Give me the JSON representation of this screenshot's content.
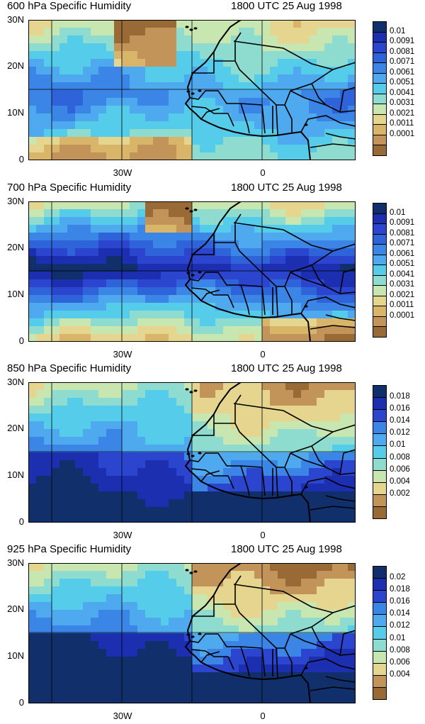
{
  "panels": [
    {
      "title_left": "600 hPa Specific Humidity",
      "title_right": "1800 UTC 25 Aug 1998",
      "y_ticks": [
        "30N",
        "20N",
        "10N",
        "0"
      ],
      "x_ticks": [
        "30W",
        "0"
      ],
      "colorbar_labels": [
        "0.01",
        "0.0091",
        "0.0081",
        "0.0071",
        "0.0061",
        "0.0051",
        "0.0041",
        "0.0031",
        "0.0021",
        "0.0011",
        "0.0001"
      ],
      "colors": [
        "#11306b",
        "#1b2fb0",
        "#2b45cf",
        "#2f63da",
        "#3a85e6",
        "#4ea9ee",
        "#54ccea",
        "#8edcd0",
        "#c7e6b0",
        "#e6d58e",
        "#d9b56a",
        "#c3945a",
        "#9a6a36"
      ],
      "ramp": "wet-mid"
    },
    {
      "title_left": "700 hPa Specific Humidity",
      "title_right": "1800 UTC 25 Aug 1998",
      "y_ticks": [
        "30N",
        "20N",
        "10N",
        "0"
      ],
      "x_ticks": [
        "30W",
        "0"
      ],
      "colorbar_labels": [
        "0.01",
        "0.0091",
        "0.0081",
        "0.0071",
        "0.0061",
        "0.0051",
        "0.0041",
        "0.0031",
        "0.0021",
        "0.0011",
        "0.0001"
      ],
      "colors": [
        "#11306b",
        "#1b2fb0",
        "#2b45cf",
        "#2f63da",
        "#3a85e6",
        "#4ea9ee",
        "#54ccea",
        "#8edcd0",
        "#c7e6b0",
        "#e6d58e",
        "#d9b56a",
        "#c3945a",
        "#9a6a36"
      ],
      "ramp": "wet-band"
    },
    {
      "title_left": "850 hPa Specific Humidity",
      "title_right": "1800 UTC 25 Aug 1998",
      "y_ticks": [
        "30N",
        "20N",
        "10N",
        "0"
      ],
      "x_ticks": [
        "30W",
        "0"
      ],
      "colorbar_labels": [
        "0.018",
        "0.016",
        "0.014",
        "0.012",
        "0.01",
        "0.008",
        "0.006",
        "0.004",
        "0.002"
      ],
      "colors": [
        "#11306b",
        "#1b2fb0",
        "#2b45cf",
        "#3a85e6",
        "#4ea9ee",
        "#54ccea",
        "#8edcd0",
        "#c7e6b0",
        "#e6d58e",
        "#c3945a",
        "#9a6a36"
      ],
      "ramp": "dry-north"
    },
    {
      "title_left": "925 hPa Specific Humidity",
      "title_right": "1800 UTC 25 Aug 1998",
      "y_ticks": [
        "30N",
        "20N",
        "10N",
        "0"
      ],
      "x_ticks": [
        "30W",
        "0"
      ],
      "colorbar_labels": [
        "0.02",
        "0.018",
        "0.016",
        "0.014",
        "0.012",
        "0.01",
        "0.008",
        "0.006",
        "0.004"
      ],
      "colors": [
        "#11306b",
        "#1b2fb0",
        "#2b45cf",
        "#3a85e6",
        "#4ea9ee",
        "#54ccea",
        "#8edcd0",
        "#c7e6b0",
        "#e6d58e",
        "#c3945a",
        "#9a6a36"
      ],
      "ramp": "dry-north-strong"
    }
  ]
}
